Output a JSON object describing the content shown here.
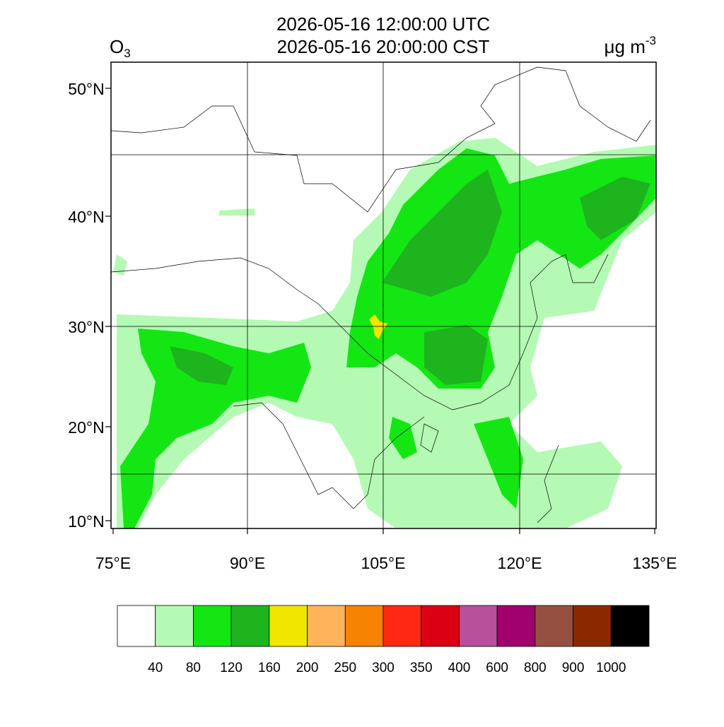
{
  "header": {
    "title_line1": "2026-05-16 12:00:00 UTC",
    "title_line2": "2026-05-16 20:00:00 CST",
    "variable": "O",
    "variable_subscript": "3",
    "units": "μg m",
    "units_superscript": "-3"
  },
  "map": {
    "lat_labels": [
      "50°N",
      "40°N",
      "30°N",
      "20°N",
      "10°N"
    ],
    "lon_labels": [
      "75°E",
      "90°E",
      "105°E",
      "120°E",
      "135°E"
    ]
  },
  "colorbar": {
    "colors": [
      "#ffffff",
      "#b4fab4",
      "#14e614",
      "#1eb41e",
      "#f0e600",
      "#ffb45a",
      "#f58200",
      "#ff2814",
      "#dc0014",
      "#b9509b",
      "#a0006e",
      "#965041",
      "#8c2800",
      "#000000"
    ],
    "levels": [
      40,
      80,
      120,
      160,
      200,
      250,
      300,
      350,
      400,
      600,
      800,
      900,
      1000
    ]
  }
}
